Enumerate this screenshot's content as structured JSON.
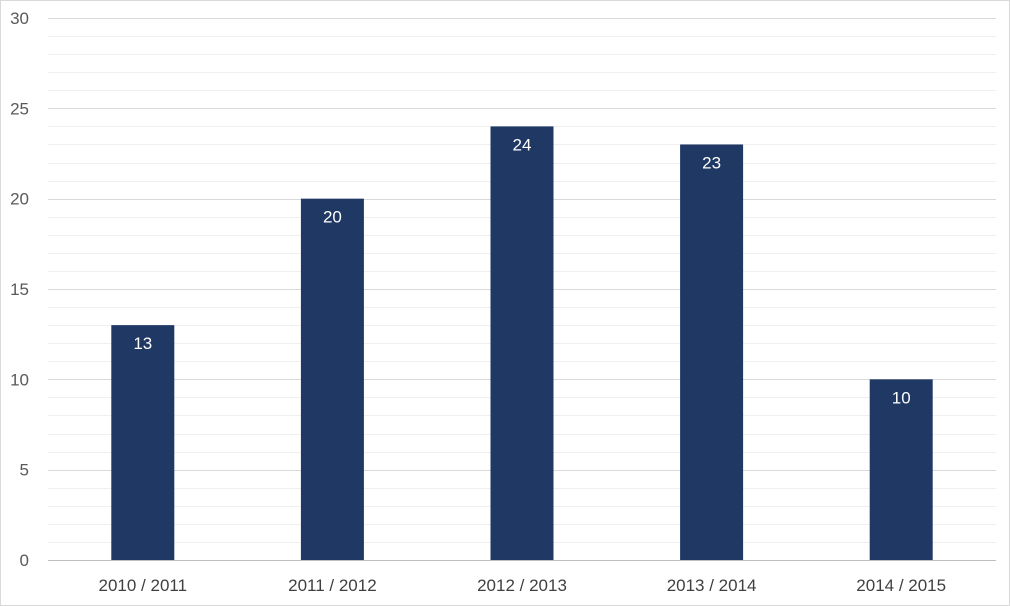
{
  "colors": {
    "bar": "#1f3864",
    "major_grid": "#d9d9d9",
    "minor_grid": "#efefef",
    "axis_line": "#bfbfbf",
    "frame": "#d9d9d9",
    "tick_text": "#595959",
    "category_text": "#404040",
    "data_label_text": "#ffffff"
  },
  "chart_data": {
    "type": "bar",
    "categories": [
      "2010 / 2011",
      "2011 / 2012",
      "2012 / 2013",
      "2013 / 2014",
      "2014 / 2015"
    ],
    "values": [
      13,
      20,
      24,
      23,
      10
    ],
    "data_labels": [
      "13",
      "20",
      "24",
      "23",
      "10"
    ],
    "ylim": [
      0,
      30
    ],
    "y_ticks": [
      0,
      5,
      10,
      15,
      20,
      25,
      30
    ],
    "y_tick_labels": [
      "0",
      "5",
      "10",
      "15",
      "20",
      "25",
      "30"
    ],
    "y_minor_step": 1,
    "grid": true,
    "legend": "none",
    "title": "",
    "xlabel": "",
    "ylabel": ""
  }
}
